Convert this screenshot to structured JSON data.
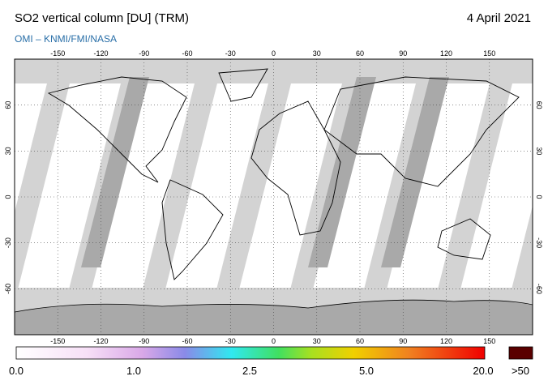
{
  "header": {
    "title": "SO2 vertical column [DU] (TRM)",
    "date": "4 April 2021",
    "credit": "OMI – KNMI/FMI/NASA"
  },
  "map": {
    "lon_ticks": [
      -150,
      -120,
      -90,
      -60,
      -30,
      0,
      30,
      60,
      90,
      120,
      150
    ],
    "lat_ticks": [
      60,
      30,
      0,
      -30,
      -60
    ]
  },
  "colorbar": {
    "labels": [
      "0.0",
      "1.0",
      "2.5",
      "5.0",
      "20.0",
      ">50"
    ]
  }
}
